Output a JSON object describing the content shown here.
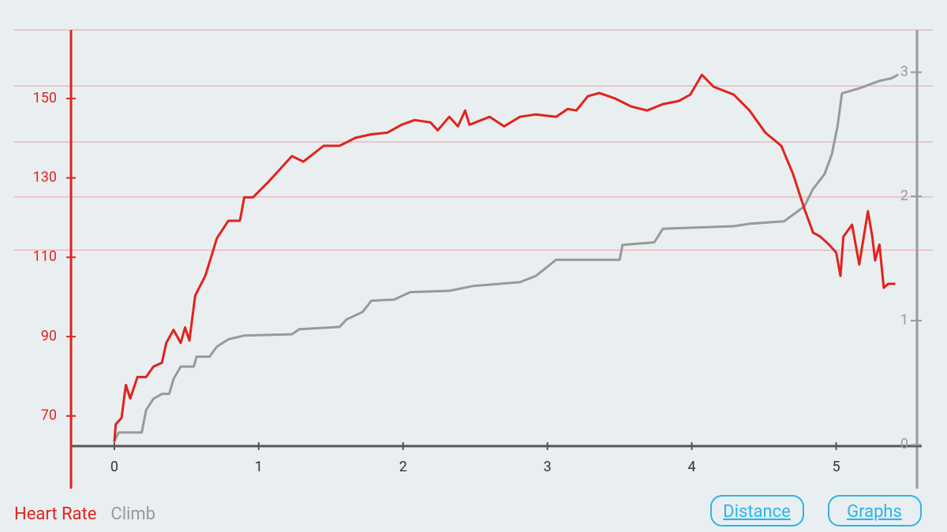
{
  "chart_data": {
    "type": "line",
    "xlim": [
      -0.3,
      5.56
    ],
    "xticks": [
      0,
      1,
      2,
      3,
      4,
      5
    ],
    "ylim": [
      62.4,
      167.3
    ],
    "yticks": [
      70,
      90,
      110,
      130,
      150
    ],
    "y2lim": [
      -0.01,
      3.34
    ],
    "y2ticks": [
      0,
      1,
      2,
      3
    ],
    "ygrid": [
      167.3,
      153.2,
      139.1,
      125.2,
      111.8
    ],
    "series": [
      {
        "name": "Heart Rate",
        "color": "#e0231c",
        "axis": "y",
        "x": [
          0,
          0.01,
          0.05,
          0.08,
          0.11,
          0.16,
          0.22,
          0.27,
          0.33,
          0.36,
          0.41,
          0.46,
          0.49,
          0.52,
          0.56,
          0.63,
          0.68,
          0.71,
          0.79,
          0.87,
          0.9,
          0.96,
          1.07,
          1.23,
          1.31,
          1.45,
          1.56,
          1.67,
          1.78,
          1.89,
          1.99,
          2.08,
          2.19,
          2.24,
          2.32,
          2.38,
          2.43,
          2.46,
          2.6,
          2.7,
          2.81,
          2.92,
          3.06,
          3.14,
          3.2,
          3.28,
          3.36,
          3.47,
          3.58,
          3.69,
          3.8,
          3.91,
          3.99,
          4.07,
          4.15,
          4.29,
          4.4,
          4.51,
          4.62,
          4.7,
          4.78,
          4.84,
          4.89,
          4.95,
          5.0,
          5.03,
          5.05,
          5.11,
          5.16,
          5.22,
          5.25,
          5.27,
          5.3,
          5.33,
          5.36,
          5.41
        ],
        "values": [
          63.5,
          67.9,
          69.5,
          77.8,
          74.4,
          79.8,
          79.8,
          82.4,
          83.4,
          88.4,
          91.7,
          88.4,
          92.3,
          89.0,
          100.3,
          105.3,
          111.2,
          114.8,
          119.2,
          119.2,
          125.1,
          125.1,
          129.1,
          135.5,
          134.1,
          138.1,
          138.1,
          140.1,
          141.0,
          141.4,
          143.4,
          144.6,
          144.0,
          142.0,
          145.4,
          143.0,
          147.0,
          143.4,
          145.4,
          143.0,
          145.4,
          146.0,
          145.4,
          147.4,
          147.0,
          150.6,
          151.4,
          150.0,
          148.0,
          147.0,
          148.6,
          149.4,
          151.0,
          156.0,
          153.0,
          151.0,
          147.0,
          141.4,
          138.1,
          131.1,
          122.2,
          116.2,
          115.2,
          113.2,
          111.2,
          105.3,
          115.2,
          118.2,
          108.2,
          121.6,
          115.2,
          109.2,
          113.2,
          102.3,
          103.3,
          103.3
        ]
      },
      {
        "name": "Climb",
        "color": "#999999",
        "axis": "y2",
        "x": [
          0,
          0.03,
          0.08,
          0.19,
          0.22,
          0.27,
          0.33,
          0.38,
          0.41,
          0.46,
          0.55,
          0.57,
          0.66,
          0.71,
          0.79,
          0.9,
          1.23,
          1.28,
          1.56,
          1.61,
          1.72,
          1.78,
          1.94,
          2.05,
          2.32,
          2.49,
          2.81,
          2.92,
          3.06,
          3.5,
          3.52,
          3.74,
          3.8,
          4.29,
          4.4,
          4.64,
          4.78,
          4.84,
          4.92,
          4.97,
          5.01,
          5.04,
          5.16,
          5.3,
          5.38,
          5.43
        ],
        "values": [
          0.03,
          0.1,
          0.1,
          0.1,
          0.28,
          0.37,
          0.41,
          0.41,
          0.53,
          0.63,
          0.63,
          0.71,
          0.71,
          0.79,
          0.85,
          0.88,
          0.89,
          0.93,
          0.95,
          1.01,
          1.07,
          1.16,
          1.17,
          1.23,
          1.24,
          1.28,
          1.31,
          1.36,
          1.49,
          1.49,
          1.61,
          1.63,
          1.74,
          1.76,
          1.78,
          1.8,
          1.92,
          2.06,
          2.18,
          2.34,
          2.57,
          2.83,
          2.87,
          2.93,
          2.95,
          2.98
        ]
      }
    ]
  },
  "buttons": [
    "Distance",
    "Graphs"
  ]
}
